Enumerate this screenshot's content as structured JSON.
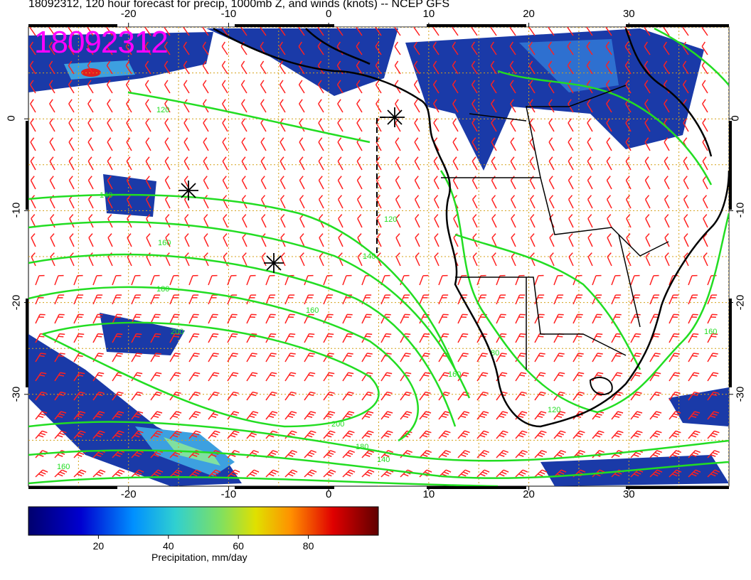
{
  "title": "18092312, 120 hour forecast for precip, 1000mb Z, and winds (knots) -- NCEP GFS",
  "stamp": "18092312",
  "map": {
    "lon_range": [
      -30,
      40
    ],
    "lat_range": [
      -40,
      10
    ],
    "lon_ticks": [
      "-20",
      "-10",
      "0",
      "10",
      "20",
      "30"
    ],
    "lat_ticks": [
      "0",
      "-10",
      "-20",
      "-30"
    ],
    "contour_labels": [
      "120",
      "140",
      "160",
      "180",
      "200",
      "160",
      "140",
      "120",
      "160",
      "180",
      "200",
      "140",
      "160",
      "80",
      "120",
      "160"
    ],
    "colors": {
      "barbs": "#ff2020",
      "contours": "#22dd22",
      "grid": "#d4a017",
      "precip_low": "#00007a",
      "precip_high": "#cc0000"
    }
  },
  "colorbar": {
    "label": "Precipitation, mm/day",
    "ticks": [
      "20",
      "40",
      "60",
      "80"
    ],
    "range": [
      0,
      100
    ]
  }
}
